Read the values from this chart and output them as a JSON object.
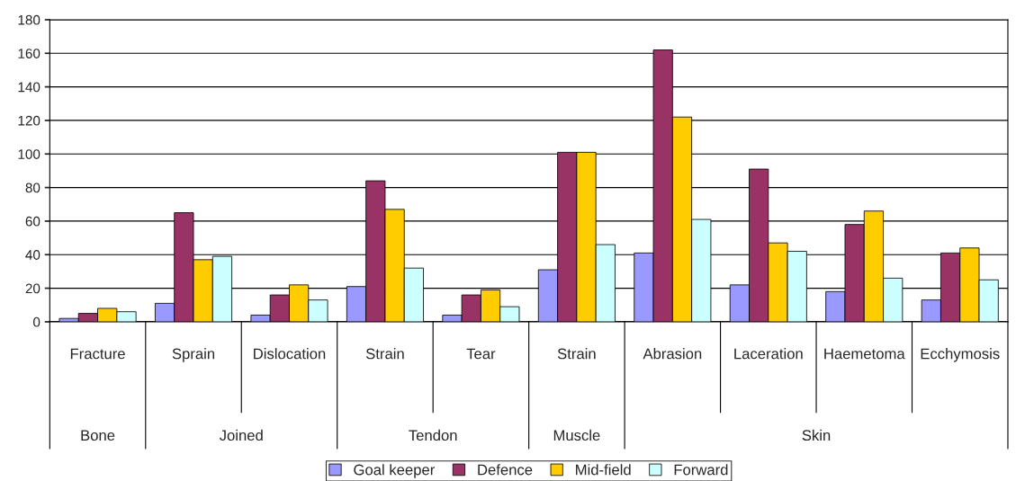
{
  "chart_data": {
    "type": "bar",
    "categories": [
      "Fracture",
      "Sprain",
      "Dislocation",
      "Strain",
      "Tear",
      "Strain",
      "Abrasion",
      "Laceration",
      "Haemetoma",
      "Ecchymosis"
    ],
    "series": [
      {
        "name": "Goal keeper",
        "color": "#9999ff",
        "values": [
          2,
          11,
          4,
          21,
          4,
          31,
          41,
          22,
          18,
          13
        ]
      },
      {
        "name": "Defence",
        "color": "#993366",
        "values": [
          5,
          65,
          16,
          84,
          16,
          101,
          162,
          91,
          58,
          41
        ]
      },
      {
        "name": "Mid-field",
        "color": "#ffcc00",
        "values": [
          8,
          37,
          22,
          67,
          19,
          101,
          122,
          47,
          66,
          44
        ]
      },
      {
        "name": "Forward",
        "color": "#ccffff",
        "values": [
          6,
          39,
          13,
          32,
          9,
          46,
          61,
          42,
          26,
          25
        ]
      }
    ],
    "annotations": [
      "Bone",
      "Joined",
      "Tendon",
      "Muscle",
      "Skin"
    ],
    "ylim": [
      0,
      180
    ],
    "yticks": [
      0,
      20,
      40,
      60,
      80,
      100,
      120,
      140,
      160,
      180
    ],
    "grid": "y",
    "legend": "bottom"
  }
}
